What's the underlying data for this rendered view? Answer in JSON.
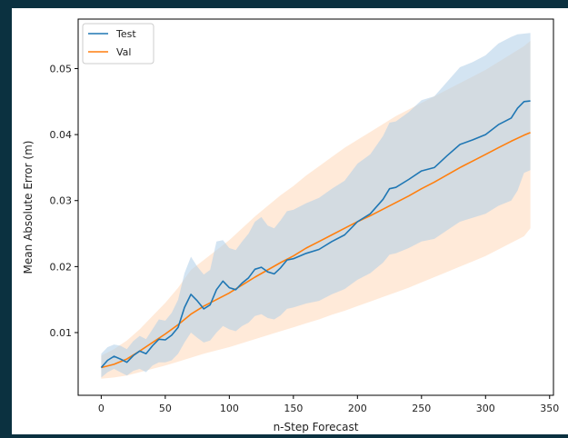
{
  "chart_data": {
    "type": "line",
    "title": "",
    "xlabel": "n-Step Forecast",
    "ylabel": "Mean Absolute Error (m)",
    "xlim": [
      -18,
      353
    ],
    "ylim": [
      0.0005,
      0.0575
    ],
    "x_ticks": [
      0,
      50,
      100,
      150,
      200,
      250,
      300,
      350
    ],
    "y_ticks": [
      0.01,
      0.02,
      0.03,
      0.04,
      0.05
    ],
    "y_tick_labels": [
      "0.01",
      "0.02",
      "0.03",
      "0.04",
      "0.05"
    ],
    "grid": false,
    "legend": "upper-left",
    "series": [
      {
        "name": "Test",
        "color": "#1f77b4",
        "band_color": "#aecde8",
        "x": [
          0,
          5,
          10,
          15,
          20,
          25,
          30,
          35,
          40,
          45,
          50,
          55,
          60,
          65,
          70,
          75,
          80,
          85,
          90,
          95,
          100,
          105,
          110,
          115,
          120,
          125,
          130,
          135,
          140,
          145,
          150,
          160,
          170,
          180,
          190,
          200,
          210,
          220,
          225,
          230,
          240,
          250,
          260,
          270,
          280,
          290,
          300,
          310,
          320,
          325,
          330,
          335
        ],
        "y": [
          0.0047,
          0.0058,
          0.0064,
          0.006,
          0.0055,
          0.0065,
          0.0072,
          0.0068,
          0.008,
          0.009,
          0.0089,
          0.0096,
          0.0108,
          0.0138,
          0.0158,
          0.0148,
          0.0136,
          0.0142,
          0.0165,
          0.0178,
          0.0168,
          0.0165,
          0.0175,
          0.0183,
          0.0196,
          0.0199,
          0.0192,
          0.0189,
          0.0198,
          0.021,
          0.0212,
          0.022,
          0.0226,
          0.0238,
          0.0248,
          0.0268,
          0.028,
          0.0302,
          0.0318,
          0.032,
          0.0332,
          0.0345,
          0.035,
          0.0368,
          0.0385,
          0.0392,
          0.04,
          0.0415,
          0.0425,
          0.044,
          0.045,
          0.0451
        ],
        "lower": [
          0.0032,
          0.004,
          0.0045,
          0.004,
          0.0035,
          0.0042,
          0.0045,
          0.004,
          0.005,
          0.0055,
          0.0055,
          0.0058,
          0.0068,
          0.0085,
          0.01,
          0.0092,
          0.0085,
          0.0088,
          0.01,
          0.011,
          0.0105,
          0.0102,
          0.011,
          0.0115,
          0.0125,
          0.0128,
          0.0122,
          0.012,
          0.0126,
          0.0136,
          0.0138,
          0.0144,
          0.0148,
          0.0158,
          0.0166,
          0.018,
          0.019,
          0.0206,
          0.0218,
          0.022,
          0.0228,
          0.0238,
          0.0242,
          0.0255,
          0.0268,
          0.0274,
          0.028,
          0.0292,
          0.03,
          0.0315,
          0.0342,
          0.0346
        ],
        "upper": [
          0.0068,
          0.0078,
          0.0082,
          0.008,
          0.0075,
          0.0087,
          0.0095,
          0.009,
          0.0105,
          0.012,
          0.0118,
          0.013,
          0.015,
          0.019,
          0.0215,
          0.02,
          0.0188,
          0.0195,
          0.0238,
          0.024,
          0.0228,
          0.0225,
          0.0238,
          0.025,
          0.0268,
          0.0275,
          0.0262,
          0.0258,
          0.027,
          0.0284,
          0.0286,
          0.0296,
          0.0304,
          0.0318,
          0.033,
          0.0356,
          0.037,
          0.0398,
          0.0418,
          0.042,
          0.0434,
          0.0452,
          0.0458,
          0.048,
          0.0502,
          0.051,
          0.052,
          0.0538,
          0.0548,
          0.0552,
          0.0553,
          0.0554
        ]
      },
      {
        "name": "Val",
        "color": "#ff7f0e",
        "band_color": "#ffdcc0",
        "x": [
          0,
          10,
          20,
          30,
          40,
          50,
          60,
          70,
          80,
          90,
          100,
          110,
          120,
          130,
          140,
          150,
          160,
          170,
          180,
          190,
          200,
          210,
          220,
          230,
          240,
          250,
          260,
          270,
          280,
          290,
          300,
          310,
          320,
          330,
          335
        ],
        "y": [
          0.0047,
          0.0052,
          0.006,
          0.0072,
          0.0085,
          0.0098,
          0.0112,
          0.0128,
          0.014,
          0.015,
          0.016,
          0.0172,
          0.0184,
          0.0195,
          0.0206,
          0.0216,
          0.0228,
          0.0238,
          0.0248,
          0.0258,
          0.0268,
          0.0277,
          0.0287,
          0.0297,
          0.0307,
          0.0318,
          0.0328,
          0.0339,
          0.035,
          0.036,
          0.037,
          0.038,
          0.039,
          0.0399,
          0.0403
        ],
        "lower": [
          0.003,
          0.0032,
          0.0035,
          0.004,
          0.0045,
          0.005,
          0.0056,
          0.0062,
          0.0068,
          0.0073,
          0.0078,
          0.0084,
          0.009,
          0.0096,
          0.0102,
          0.0108,
          0.0114,
          0.012,
          0.0127,
          0.0133,
          0.014,
          0.0147,
          0.0154,
          0.0161,
          0.0168,
          0.0176,
          0.0184,
          0.0192,
          0.02,
          0.0208,
          0.0216,
          0.0226,
          0.0236,
          0.0246,
          0.0258
        ],
        "upper": [
          0.0065,
          0.0075,
          0.0088,
          0.0105,
          0.0125,
          0.0145,
          0.0168,
          0.0195,
          0.021,
          0.0225,
          0.024,
          0.0258,
          0.0276,
          0.0292,
          0.0308,
          0.0322,
          0.0338,
          0.0352,
          0.0366,
          0.038,
          0.0392,
          0.0404,
          0.0416,
          0.0428,
          0.0438,
          0.0448,
          0.0458,
          0.0468,
          0.0478,
          0.0488,
          0.0498,
          0.051,
          0.0522,
          0.0534,
          0.0542
        ]
      }
    ]
  }
}
